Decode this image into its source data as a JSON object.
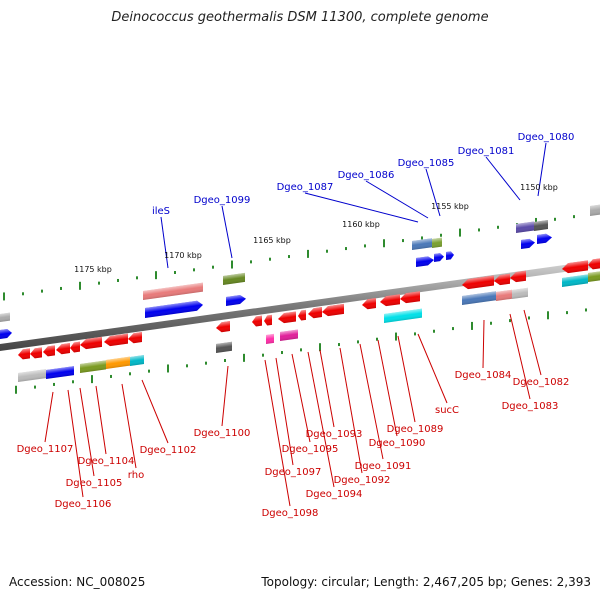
{
  "title": "Deinococcus geothermalis DSM 11300, complete genome",
  "footer": {
    "accession": "Accession: NC_008025",
    "summary": "Topology: circular; Length: 2,467,205 bp; Genes: 2,393"
  },
  "scale_labels": [
    "1175 kbp",
    "1170 kbp",
    "1165 kbp",
    "1160 kbp",
    "1155 kbp",
    "1150 kbp"
  ],
  "genes_top": [
    "ileS",
    "Dgeo_1099",
    "Dgeo_1087",
    "Dgeo_1086",
    "Dgeo_1085",
    "Dgeo_1081",
    "Dgeo_1080"
  ],
  "genes_bottom": [
    "Dgeo_1107",
    "Dgeo_1106",
    "Dgeo_1105",
    "Dgeo_1104",
    "rho",
    "Dgeo_1102",
    "Dgeo_1100",
    "Dgeo_1098",
    "Dgeo_1097",
    "Dgeo_1095",
    "Dgeo_1094",
    "Dgeo_1093",
    "Dgeo_1092",
    "Dgeo_1091",
    "Dgeo_1090",
    "Dgeo_1089",
    "sucC",
    "Dgeo_1084",
    "Dgeo_1083",
    "Dgeo_1082"
  ],
  "colors": {
    "forward_label": "#0000cc",
    "reverse_label": "#cc0000",
    "forward_gene": "#0000ee",
    "reverse_gene": "#ee0000",
    "tick": "#2e8b2e",
    "axis": "#777777"
  }
}
